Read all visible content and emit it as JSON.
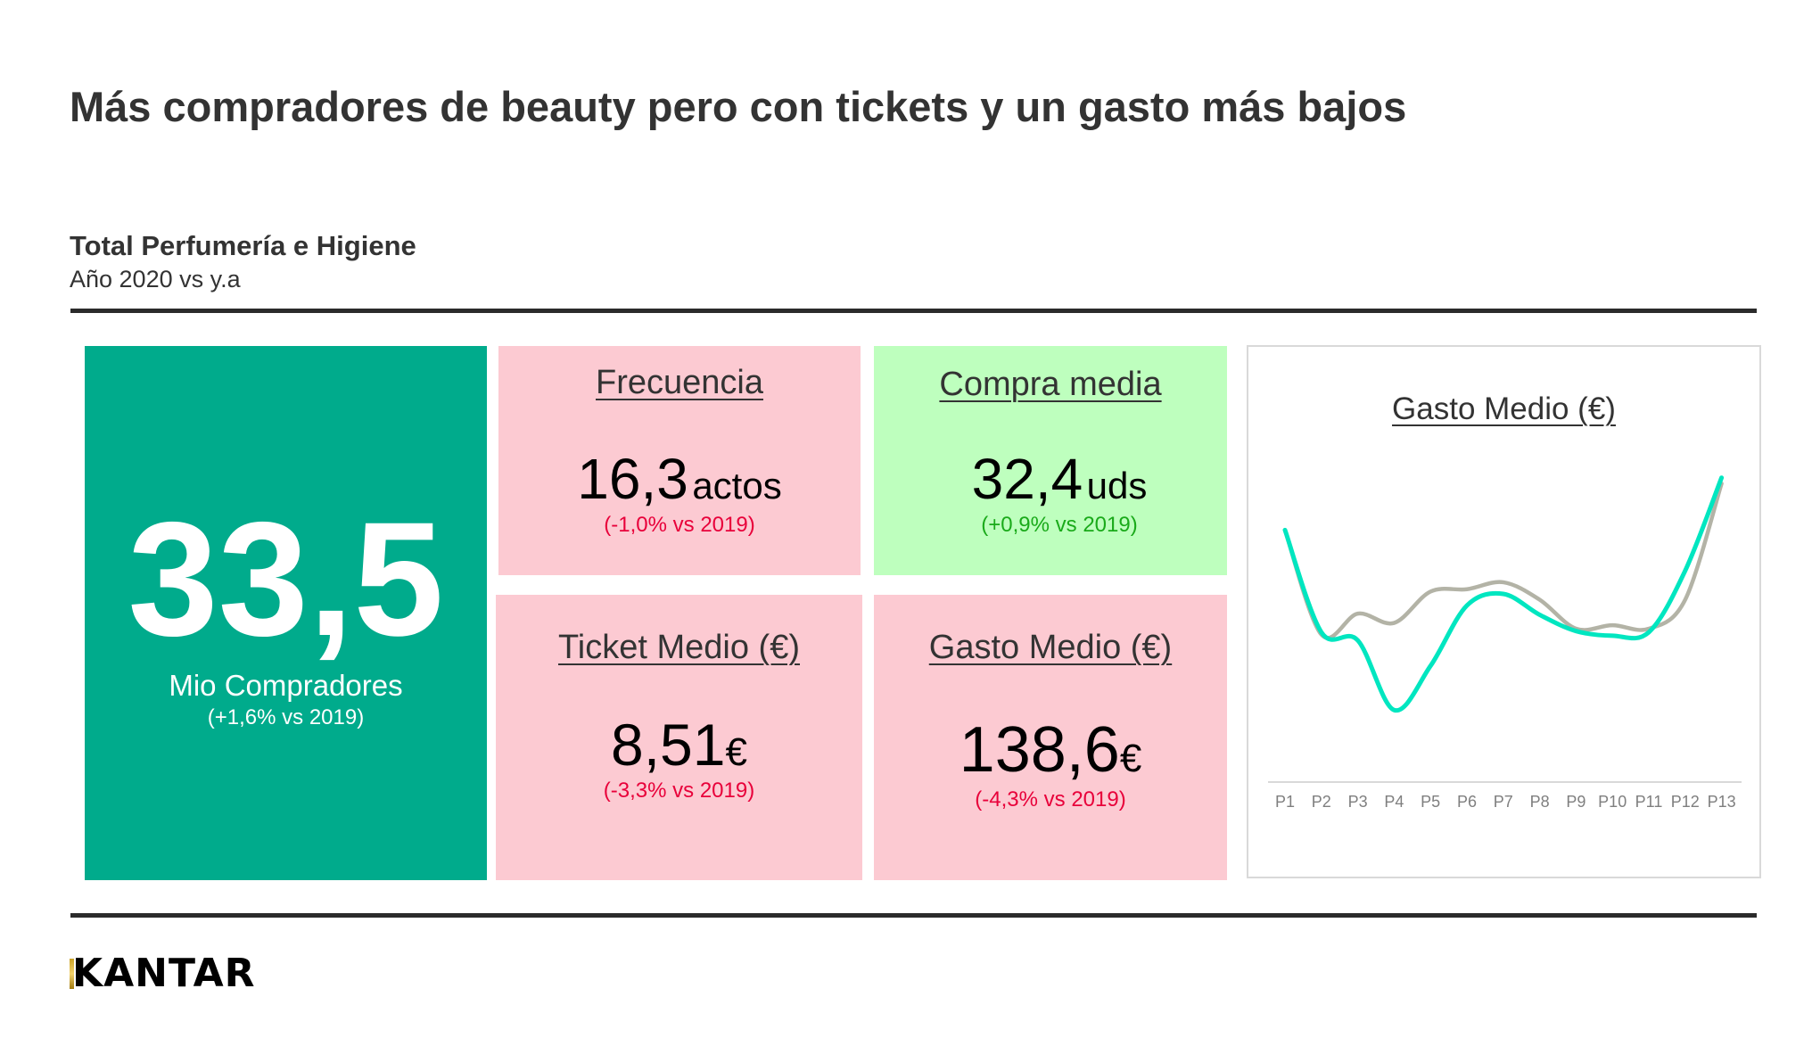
{
  "header": {
    "title": "Más compradores de beauty pero con tickets y un gasto más bajos",
    "subtitle": "Total Perfumería e Higiene",
    "period": "Año 2020 vs y.a"
  },
  "colors": {
    "main_tile": "#00AB8C",
    "negative_tile": "#FCCAD2",
    "positive_tile": "#BEFFBE",
    "negative_text": "#E8003A",
    "positive_text": "#1AAA1A",
    "series_current": "#00E6C0",
    "series_prev": "#B3B3A6"
  },
  "kpis": {
    "compradores": {
      "value": "33,5",
      "label": "Mio Compradores",
      "delta": "(+1,6% vs 2019)"
    },
    "frecuencia": {
      "title": "Frecuencia",
      "value": "16,3",
      "unit": "actos",
      "delta": "(-1,0% vs 2019)"
    },
    "compra_media": {
      "title": "Compra media",
      "value": "32,4",
      "unit": "uds",
      "delta": "(+0,9% vs 2019)"
    },
    "ticket_medio": {
      "title": "Ticket Medio (€)",
      "value": "8,51",
      "unit": "€",
      "delta": "(-3,3% vs 2019)"
    },
    "gasto_medio": {
      "title": "Gasto Medio (€)",
      "value": "138,6",
      "unit": "€",
      "delta": "(-4,3% vs 2019)"
    }
  },
  "chart_data": {
    "type": "line",
    "title": "Gasto Medio (€)",
    "smooth": true,
    "grid": false,
    "legend": "none",
    "y_axis_shown": false,
    "categories": [
      "P1",
      "P2",
      "P3",
      "P4",
      "P5",
      "P6",
      "P7",
      "P8",
      "P9",
      "P10",
      "P11",
      "P12",
      "P13"
    ],
    "ylim": [
      0,
      300
    ],
    "series": [
      {
        "color": "#B3B3A6",
        "values": [
          217,
          127,
          145,
          137,
          164,
          166,
          172,
          157,
          132,
          135,
          132,
          157,
          257
        ]
      },
      {
        "color": "#00E6C0",
        "values": [
          217,
          129,
          122,
          62,
          100,
          152,
          162,
          144,
          130,
          126,
          129,
          182,
          262
        ]
      }
    ]
  },
  "footer": {
    "logo": "KANTAR"
  }
}
